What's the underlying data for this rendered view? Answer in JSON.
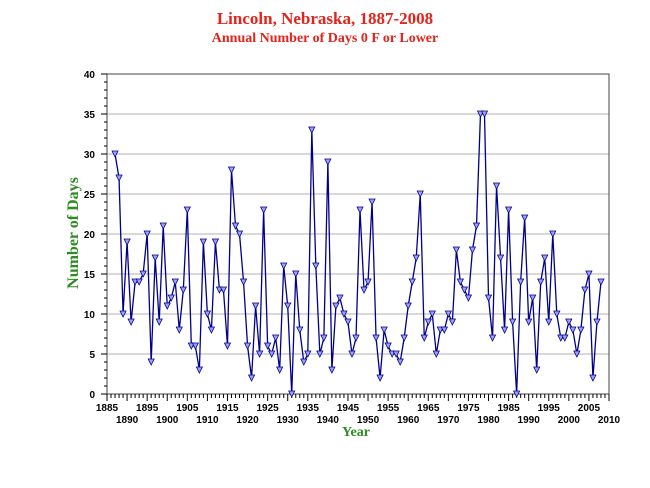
{
  "chart_data": {
    "type": "line",
    "title": "Lincoln, Nebraska, 1887-2008",
    "subtitle": "Annual Number of Days 0 F or Lower",
    "xlabel": "Year",
    "ylabel": "Number of Days",
    "xlim": [
      1885,
      2010
    ],
    "ylim": [
      0,
      40
    ],
    "grid": true,
    "x_ticks_upper": [
      "1885",
      "1895",
      "1905",
      "1915",
      "1925",
      "1935",
      "1945",
      "1955",
      "1965",
      "1975",
      "1985",
      "1995",
      "2005"
    ],
    "x_ticks_lower": [
      "1890",
      "1900",
      "1910",
      "1920",
      "1930",
      "1940",
      "1950",
      "1960",
      "1970",
      "1980",
      "1990",
      "2000",
      "2010"
    ],
    "y_ticks": [
      "0",
      "5",
      "10",
      "15",
      "20",
      "25",
      "30",
      "35",
      "40"
    ],
    "series": [
      {
        "line_color": "#00008b",
        "marker_color": "#9aa0ff",
        "x": [
          1887,
          1888,
          1889,
          1890,
          1891,
          1892,
          1893,
          1894,
          1895,
          1896,
          1897,
          1898,
          1899,
          1900,
          1901,
          1902,
          1903,
          1904,
          1905,
          1906,
          1907,
          1908,
          1909,
          1910,
          1911,
          1912,
          1913,
          1914,
          1915,
          1916,
          1917,
          1918,
          1919,
          1920,
          1921,
          1922,
          1923,
          1924,
          1925,
          1926,
          1927,
          1928,
          1929,
          1930,
          1931,
          1932,
          1933,
          1934,
          1935,
          1936,
          1937,
          1938,
          1939,
          1940,
          1941,
          1942,
          1943,
          1944,
          1945,
          1946,
          1947,
          1948,
          1949,
          1950,
          1951,
          1952,
          1953,
          1954,
          1955,
          1956,
          1957,
          1958,
          1959,
          1960,
          1961,
          1962,
          1963,
          1964,
          1965,
          1966,
          1967,
          1968,
          1969,
          1970,
          1971,
          1972,
          1973,
          1974,
          1975,
          1976,
          1977,
          1978,
          1979,
          1980,
          1981,
          1982,
          1983,
          1984,
          1985,
          1986,
          1987,
          1988,
          1989,
          1990,
          1991,
          1992,
          1993,
          1994,
          1995,
          1996,
          1997,
          1998,
          1999,
          2000,
          2001,
          2002,
          2003,
          2004,
          2005,
          2006,
          2007,
          2008
        ],
        "values": [
          30,
          27,
          10,
          19,
          9,
          14,
          14,
          15,
          20,
          4,
          17,
          9,
          21,
          11,
          12,
          14,
          8,
          13,
          23,
          6,
          6,
          3,
          19,
          10,
          8,
          19,
          13,
          13,
          6,
          28,
          21,
          20,
          14,
          6,
          2,
          11,
          5,
          23,
          6,
          5,
          7,
          3,
          16,
          11,
          0,
          15,
          8,
          4,
          5,
          33,
          16,
          5,
          7,
          29,
          3,
          11,
          12,
          10,
          9,
          5,
          7,
          23,
          13,
          14,
          24,
          7,
          2,
          8,
          6,
          5,
          5,
          4,
          7,
          11,
          14,
          17,
          25,
          7,
          9,
          10,
          5,
          8,
          8,
          10,
          9,
          18,
          14,
          13,
          12,
          18,
          21,
          35,
          35,
          12,
          7,
          26,
          17,
          8,
          23,
          9,
          0,
          14,
          22,
          9,
          12,
          3,
          14,
          17,
          9,
          20,
          10,
          7,
          7,
          9,
          8,
          5,
          8,
          13,
          15,
          2,
          9,
          14
        ]
      }
    ]
  }
}
